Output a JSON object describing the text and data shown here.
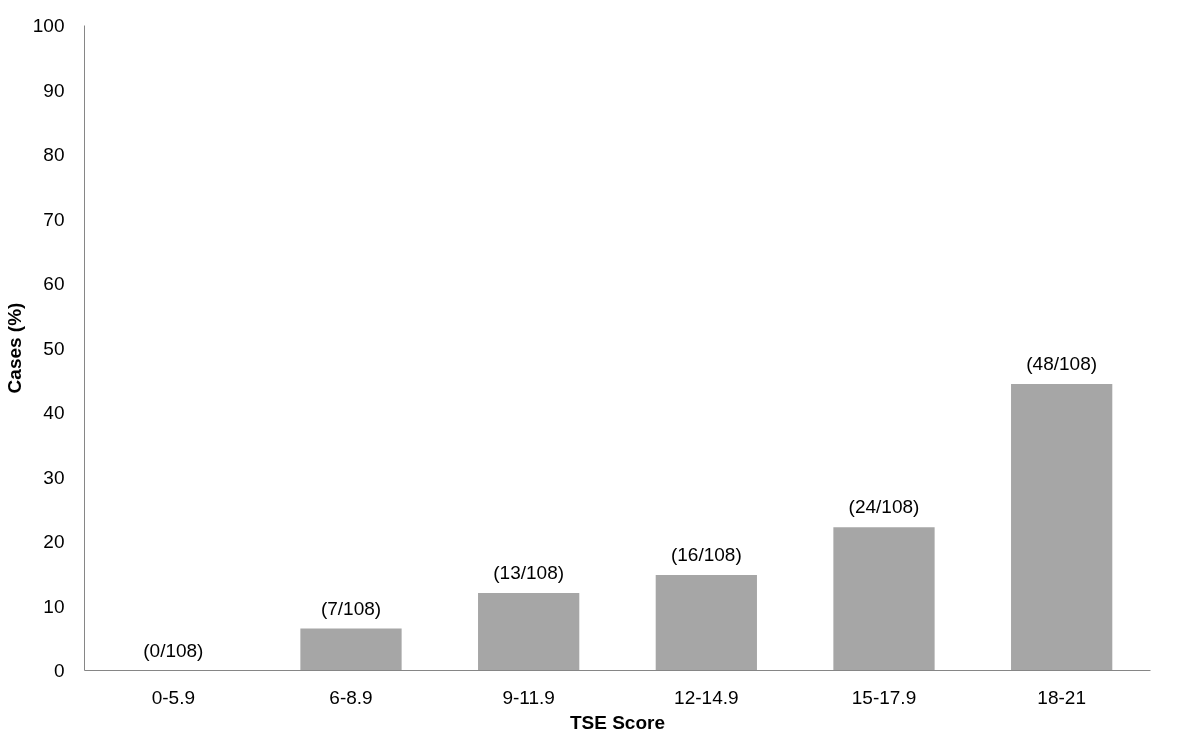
{
  "chart_data": {
    "type": "bar",
    "xlabel": "TSE Score",
    "ylabel": "Cases (%)",
    "categories": [
      "0-5.9",
      "6-8.9",
      "9-11.9",
      "12-14.9",
      "15-17.9",
      "18-21"
    ],
    "values": [
      0,
      6.5,
      12.0,
      14.8,
      22.2,
      44.4
    ],
    "value_labels": [
      "(0/108)",
      "(7/108)",
      "(13/108)",
      "(16/108)",
      "(24/108)",
      "(48/108)"
    ],
    "color": "#a6a6a6",
    "ylim": [
      0,
      100
    ],
    "yticks": [
      0,
      10,
      20,
      30,
      40,
      50,
      60,
      70,
      80,
      90,
      100
    ],
    "grid": false
  }
}
